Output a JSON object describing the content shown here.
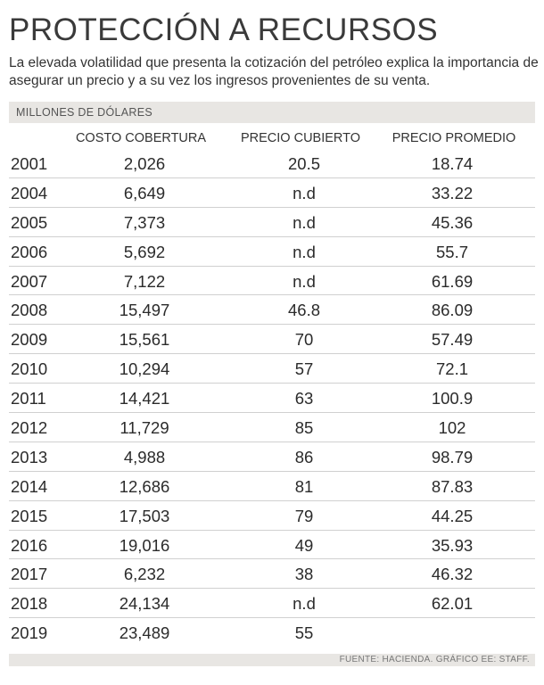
{
  "header": {
    "title": "PROTECCIÓN A RECURSOS",
    "subtitle": "La elevada volatilidad que presenta la cotización del petróleo explica la importancia de asegurar un precio y a su vez los ingresos provenientes de su venta."
  },
  "table": {
    "units": "MILLONES DE DÓLARES",
    "columns": [
      "COSTO COBERTURA",
      "PRECIO CUBIERTO",
      "PRECIO PROMEDIO"
    ],
    "rows": [
      {
        "year": "2001",
        "costo": "2,026",
        "cubierto": "20.5",
        "promedio": "18.74"
      },
      {
        "year": "2004",
        "costo": "6,649",
        "cubierto": "n.d",
        "promedio": "33.22"
      },
      {
        "year": "2005",
        "costo": "7,373",
        "cubierto": "n.d",
        "promedio": "45.36"
      },
      {
        "year": "2006",
        "costo": "5,692",
        "cubierto": "n.d",
        "promedio": "55.7"
      },
      {
        "year": "2007",
        "costo": "7,122",
        "cubierto": "n.d",
        "promedio": "61.69"
      },
      {
        "year": "2008",
        "costo": "15,497",
        "cubierto": "46.8",
        "promedio": "86.09"
      },
      {
        "year": "2009",
        "costo": "15,561",
        "cubierto": "70",
        "promedio": "57.49"
      },
      {
        "year": "2010",
        "costo": "10,294",
        "cubierto": "57",
        "promedio": "72.1"
      },
      {
        "year": "2011",
        "costo": "14,421",
        "cubierto": "63",
        "promedio": "100.9"
      },
      {
        "year": "2012",
        "costo": "11,729",
        "cubierto": "85",
        "promedio": "102"
      },
      {
        "year": "2013",
        "costo": "4,988",
        "cubierto": "86",
        "promedio": "98.79"
      },
      {
        "year": "2014",
        "costo": "12,686",
        "cubierto": "81",
        "promedio": "87.83"
      },
      {
        "year": "2015",
        "costo": "17,503",
        "cubierto": "79",
        "promedio": "44.25"
      },
      {
        "year": "2016",
        "costo": "19,016",
        "cubierto": "49",
        "promedio": "35.93"
      },
      {
        "year": "2017",
        "costo": "6,232",
        "cubierto": "38",
        "promedio": "46.32"
      },
      {
        "year": "2018",
        "costo": "24,134",
        "cubierto": "n.d",
        "promedio": "62.01"
      },
      {
        "year": "2019",
        "costo": "23,489",
        "cubierto": "55",
        "promedio": ""
      }
    ]
  },
  "footer": {
    "source": "FUENTE: HACIENDA. GRÁFICO EE: STAFF."
  },
  "colors": {
    "band": "#e8e6e3",
    "text": "#2b2b2b",
    "rule": "#d0d0d0"
  }
}
